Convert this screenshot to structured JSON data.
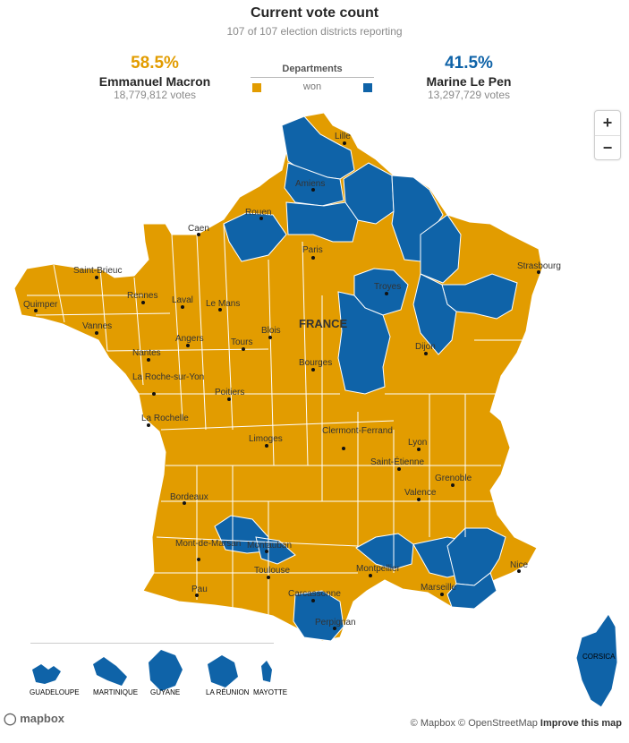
{
  "header": {
    "title": "Current vote count",
    "subtitle": "107 of 107 election districts reporting"
  },
  "candidates": {
    "macron": {
      "percent": "58.5%",
      "name": "Emmanuel Macron",
      "votes": "18,779,812 votes",
      "color": "#E29C00"
    },
    "lepen": {
      "percent": "41.5%",
      "name": "Marine Le Pen",
      "votes": "13,297,729 votes",
      "color": "#0F63A8"
    }
  },
  "legend": {
    "title": "Departments",
    "won": "won"
  },
  "zoom": {
    "in": "+",
    "out": "−"
  },
  "map": {
    "country_label": "FRANCE",
    "cities": [
      "Lille",
      "Amiens",
      "Rouen",
      "Caen",
      "Paris",
      "Saint-Brieuc",
      "Rennes",
      "Laval",
      "Le Mans",
      "Quimper",
      "Vannes",
      "Angers",
      "Tours",
      "Blois",
      "Troyes",
      "Strasbourg",
      "Nantes",
      "Bourges",
      "Dijon",
      "La Roche-sur-Yon",
      "Poitiers",
      "La Rochelle",
      "Limoges",
      "Clermont-Ferrand",
      "Lyon",
      "Saint-Étienne",
      "Grenoble",
      "Valence",
      "Bordeaux",
      "Mont-de-Marsan",
      "Montauban",
      "Toulouse",
      "Montpellier",
      "Marseille",
      "Nice",
      "Pau",
      "Carcassonne",
      "Perpignan"
    ],
    "overseas": [
      "GUADELOUPE",
      "MARTINIQUE",
      "GUYANE",
      "LA RÉUNION",
      "MAYOTTE"
    ],
    "corsica": "CORSICA",
    "land_color": "#E29C00",
    "lepen_color": "#0F63A8",
    "border_color": "#ffffff"
  },
  "attribution": {
    "mapbox_logo": "mapbox",
    "mapbox": "© Mapbox",
    "osm": "© OpenStreetMap",
    "improve": "Improve this map"
  }
}
